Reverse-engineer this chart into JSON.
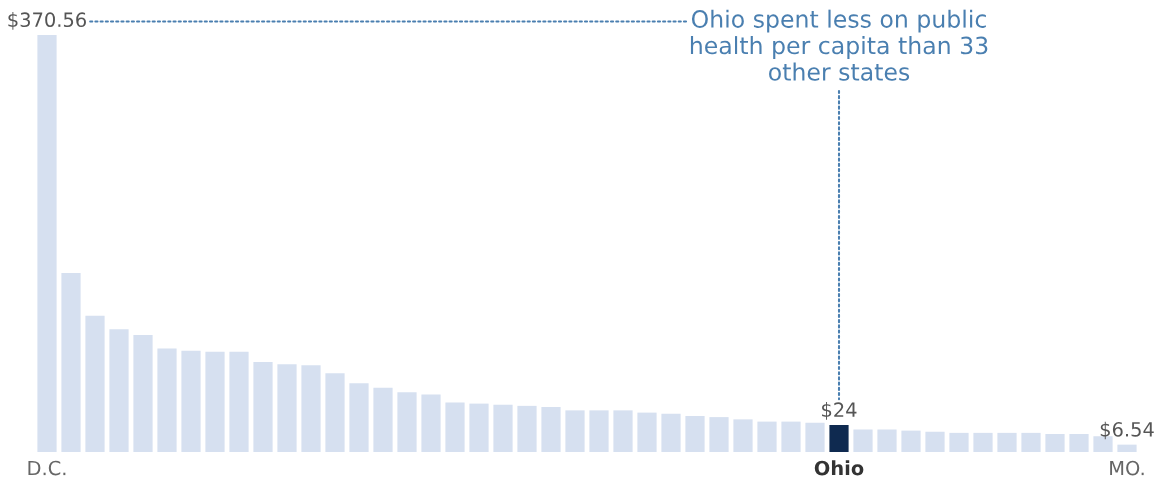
{
  "chart_data": {
    "type": "bar",
    "ylim": [
      0,
      370.56
    ],
    "tick_labels": "x",
    "categories": [
      "D.C.",
      null,
      null,
      null,
      null,
      null,
      null,
      null,
      null,
      null,
      null,
      null,
      null,
      null,
      null,
      null,
      null,
      null,
      null,
      null,
      null,
      null,
      null,
      null,
      null,
      null,
      null,
      null,
      null,
      null,
      null,
      null,
      null,
      "Ohio",
      null,
      null,
      null,
      null,
      null,
      null,
      null,
      null,
      null,
      null,
      null,
      "MO."
    ],
    "values": [
      370.56,
      159,
      121,
      109,
      104,
      92,
      90,
      89,
      89,
      80,
      78,
      77,
      70,
      61,
      57,
      53,
      51,
      44,
      43,
      42,
      41,
      40,
      37,
      37,
      37,
      35,
      34,
      32,
      31,
      29,
      27,
      27,
      26,
      24,
      20,
      20,
      19,
      18,
      17,
      17,
      17,
      17,
      16,
      16,
      14,
      6.54
    ],
    "value_labels": [
      "$370.56",
      null,
      null,
      null,
      null,
      null,
      null,
      null,
      null,
      null,
      null,
      null,
      null,
      null,
      null,
      null,
      null,
      null,
      null,
      null,
      null,
      null,
      null,
      null,
      null,
      null,
      null,
      null,
      null,
      null,
      null,
      null,
      null,
      "$24",
      null,
      null,
      null,
      null,
      null,
      null,
      null,
      null,
      null,
      null,
      null,
      "$6.54"
    ],
    "colors": [
      "#d6e0f0",
      "#d6e0f0",
      "#d6e0f0",
      "#d6e0f0",
      "#d6e0f0",
      "#d6e0f0",
      "#d6e0f0",
      "#d6e0f0",
      "#d6e0f0",
      "#d6e0f0",
      "#d6e0f0",
      "#d6e0f0",
      "#d6e0f0",
      "#d6e0f0",
      "#d6e0f0",
      "#d6e0f0",
      "#d6e0f0",
      "#d6e0f0",
      "#d6e0f0",
      "#d6e0f0",
      "#d6e0f0",
      "#d6e0f0",
      "#d6e0f0",
      "#d6e0f0",
      "#d6e0f0",
      "#d6e0f0",
      "#d6e0f0",
      "#d6e0f0",
      "#d6e0f0",
      "#d6e0f0",
      "#d6e0f0",
      "#d6e0f0",
      "#d6e0f0",
      "#0f2a50",
      "#d6e0f0",
      "#d6e0f0",
      "#d6e0f0",
      "#d6e0f0",
      "#d6e0f0",
      "#d6e0f0",
      "#d6e0f0",
      "#d6e0f0",
      "#d6e0f0",
      "#d6e0f0",
      "#d6e0f0",
      "#d6e0f0"
    ],
    "annotations": [
      {
        "text": "Ohio spent less on public\nhealth per capita than 33\nother states",
        "x": "Ohio"
      }
    ],
    "grid": false,
    "legend": false
  }
}
